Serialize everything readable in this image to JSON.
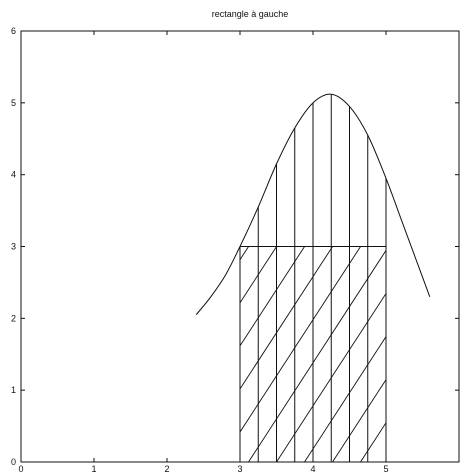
{
  "chart_data": {
    "type": "line",
    "title": "rectangle à gauche",
    "xlabel": "",
    "ylabel": "",
    "xlim": [
      0,
      6
    ],
    "ylim": [
      0,
      6
    ],
    "xticks": [
      0,
      1,
      2,
      3,
      4,
      5
    ],
    "yticks": [
      0,
      1,
      2,
      3,
      4,
      5,
      6
    ],
    "grid": false,
    "curve": {
      "x": [
        2.4,
        2.6,
        2.8,
        3.0,
        3.25,
        3.5,
        3.75,
        4.0,
        4.25,
        4.5,
        4.75,
        5.0,
        5.2,
        5.4,
        5.6
      ],
      "y": [
        2.05,
        2.3,
        2.6,
        3.0,
        3.55,
        4.15,
        4.65,
        5.0,
        5.12,
        4.95,
        4.55,
        3.95,
        3.4,
        2.85,
        2.3
      ]
    },
    "partition_x": [
      3.0,
      3.25,
      3.5,
      3.75,
      4.0,
      4.25,
      4.5,
      4.75,
      5.0
    ],
    "rectangle": {
      "x0": 3.0,
      "x1": 5.0,
      "height": 3.0
    },
    "hatch": true,
    "colors": {
      "line": "#111111",
      "background": "#ffffff"
    }
  }
}
